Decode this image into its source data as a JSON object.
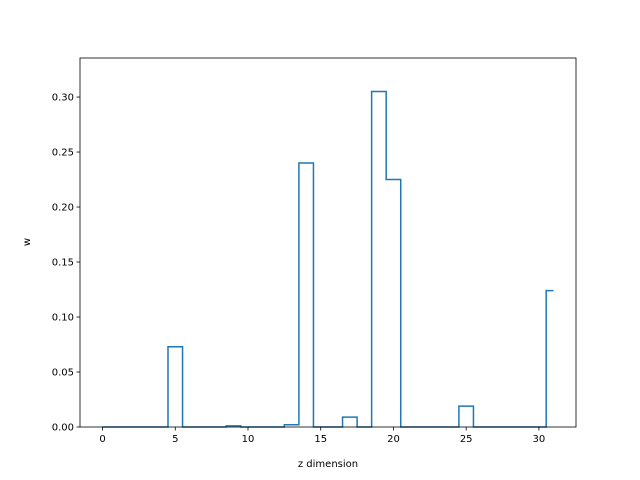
{
  "chart_data": {
    "type": "line",
    "drawstyle": "steps-mid",
    "xlabel": "z dimension",
    "ylabel": "w",
    "xlim": [
      -1.55,
      32.55
    ],
    "ylim": [
      0,
      0.3355
    ],
    "xticks": [
      0,
      5,
      10,
      15,
      20,
      25,
      30
    ],
    "yticks": [
      0.0,
      0.05,
      0.1,
      0.15,
      0.2,
      0.25,
      0.3
    ],
    "ytick_labels": [
      "0.00",
      "0.05",
      "0.10",
      "0.15",
      "0.20",
      "0.25",
      "0.30"
    ],
    "grid": false,
    "color": "#1f77b4",
    "series": [
      {
        "x": [
          0,
          1,
          2,
          3,
          4,
          5,
          6,
          7,
          8,
          9,
          10,
          11,
          12,
          13,
          14,
          15,
          16,
          17,
          18,
          19,
          20,
          21,
          22,
          23,
          24,
          25,
          26,
          27,
          28,
          29,
          30,
          31
        ],
        "values": [
          0,
          0,
          0,
          0,
          0,
          0.073,
          0,
          0,
          0,
          0.001,
          0,
          0,
          0,
          0.002,
          0.24,
          0,
          0,
          0.009,
          0,
          0.305,
          0.225,
          0,
          0,
          0,
          0,
          0.019,
          0,
          0,
          0,
          0,
          0,
          0.124
        ]
      }
    ]
  }
}
